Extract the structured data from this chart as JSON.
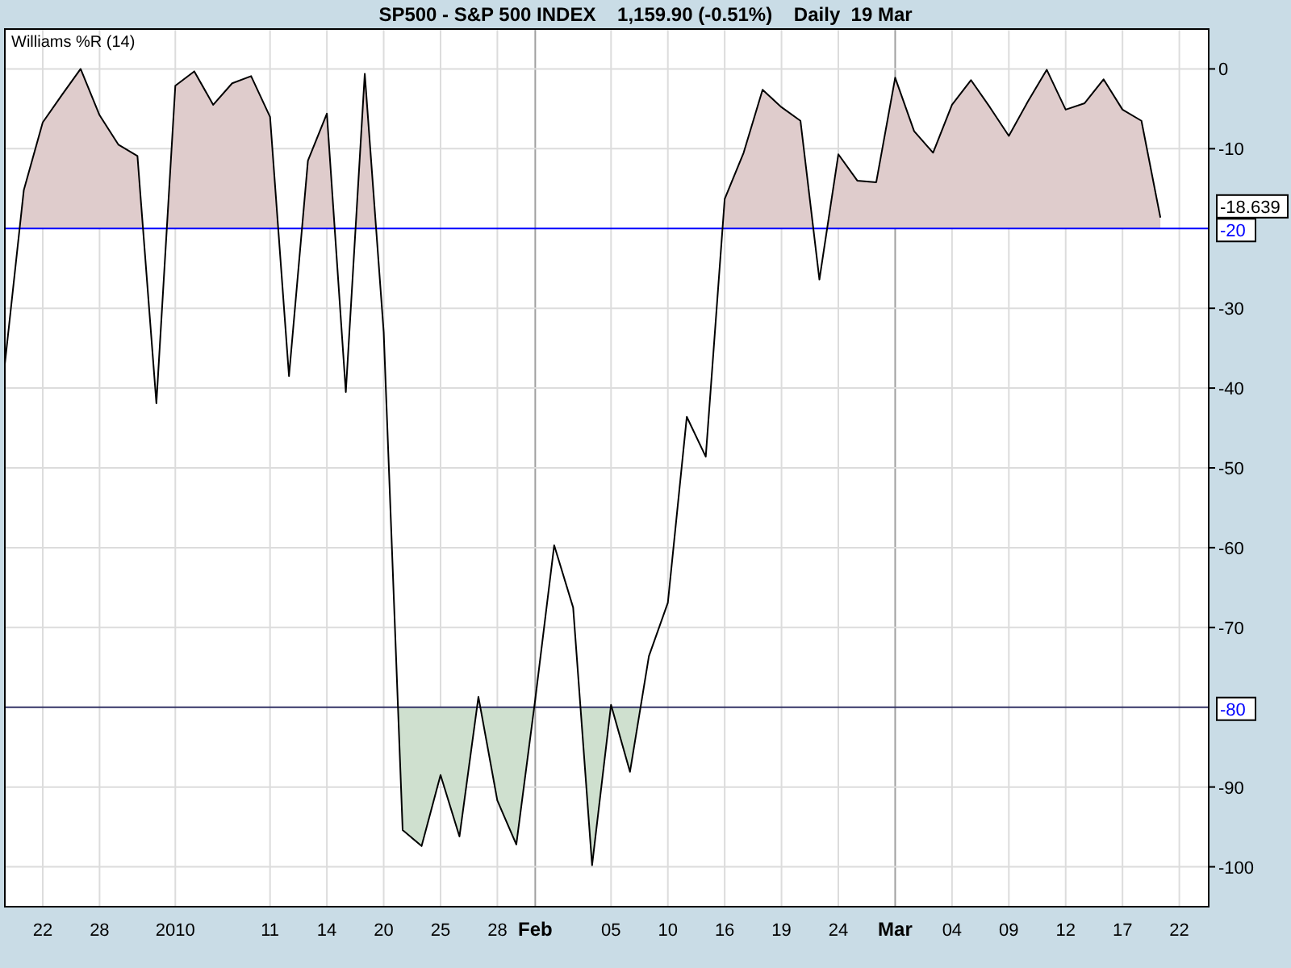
{
  "chart_data": {
    "type": "line",
    "title": "SP500 - S&P 500 INDEX    1,159.90 (-0.51%)    Daily  19 Mar",
    "subtitle": "Williams %R (14)",
    "categories": [
      null,
      null,
      "22",
      null,
      null,
      "28",
      null,
      null,
      null,
      "2010",
      null,
      null,
      null,
      null,
      "11",
      null,
      null,
      "14",
      null,
      null,
      "20",
      null,
      null,
      "25",
      null,
      null,
      "28",
      null,
      "Feb",
      null,
      null,
      null,
      "05",
      null,
      null,
      "10",
      null,
      null,
      "16",
      null,
      null,
      "19",
      null,
      null,
      "24",
      null,
      null,
      "Mar",
      null,
      null,
      "04",
      null,
      null,
      "09",
      null,
      null,
      "12",
      null,
      null,
      "17",
      null,
      null,
      "22"
    ],
    "series": [
      {
        "color": "#000000",
        "values": [
          -37,
          -15.2,
          -6.7,
          -3.3,
          0,
          -5.8,
          -9.5,
          -10.9,
          -41.9,
          -2.1,
          -0.3,
          -4.5,
          -1.8,
          -0.9,
          -6,
          -38.5,
          -11.5,
          -5.6,
          -40.5,
          -0.6,
          -33,
          -95.4,
          -97.4,
          -88.5,
          -96.2,
          -78.7,
          -91.7,
          -97.2,
          -79,
          -59.7,
          -67.5,
          -99.8,
          -79.7,
          -88.1,
          -73.6,
          -66.9,
          -43.6,
          -48.6,
          -16.3,
          -10.5,
          -2.6,
          -4.8,
          -6.5,
          -26.4,
          -10.7,
          -14,
          -14.2,
          -1.1,
          -7.8,
          -10.5,
          -4.5,
          -1.4,
          -4.8,
          -8.4,
          -4.1,
          -0.1,
          -5.1,
          -4.3,
          -1.3,
          -5.1,
          -6.5,
          -18.639,
          null
        ]
      }
    ],
    "ylim": [
      -105,
      5
    ],
    "yticks": [
      0,
      -10,
      -30,
      -40,
      -50,
      -60,
      -70,
      -90,
      -100
    ],
    "grid": true,
    "ref_lines": [
      {
        "axis": "y",
        "value": -20,
        "label": "-20",
        "color": "#0000ff"
      },
      {
        "axis": "y",
        "value": -80,
        "label": "-80",
        "color": "#333366"
      }
    ],
    "annotations": [
      "-18.639"
    ]
  }
}
